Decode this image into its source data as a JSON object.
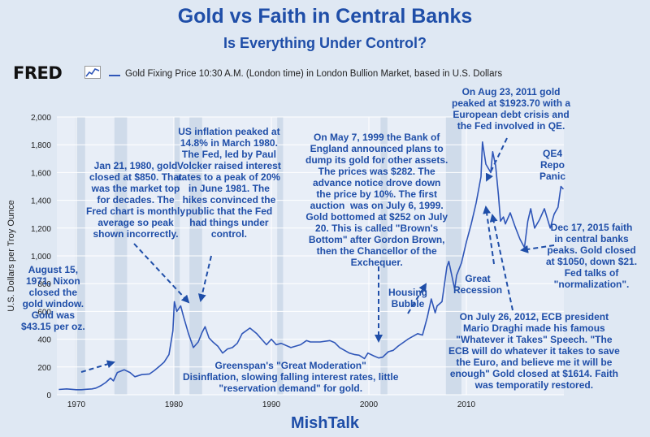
{
  "title": "Gold vs Faith in Central Banks",
  "subtitle": "Is Everything Under Control?",
  "brand": "FRED",
  "legend_label": "Gold Fixing Price 10:30 A.M. (London time) in London Bullion Market, based in U.S. Dollars",
  "footer": "MishTalk",
  "colors": {
    "line": "#2f56b8",
    "text": "#1f4ea8",
    "recession": "#cfdbea",
    "plot_bg": "#e8eef7"
  },
  "annotations": [
    {
      "id": "a1971",
      "text": "August 15,\n1971, Nixon\nclosed the\ngold window.\nGold was\n$43.15 per oz."
    },
    {
      "id": "a1980",
      "text": "Jan 21, 1980, gold\nclosed at $850. That\nwas the market top\nfor decades. The\nFred chart is monthly\naverage so peak\nshown incorrectly."
    },
    {
      "id": "a1981",
      "text": "US inflation peaked at\n14.8% in March 1980.\nThe Fed, led by Paul\nVolcker raised interest\nrates to a peak of 20%\nin June 1981. The\nhikes convinced the\npublic that the Fed\nhad things under\ncontrol."
    },
    {
      "id": "a1999",
      "text": "On May 7, 1999 the Bank of\nEngland announced plans to\ndump its gold for other assets.\nThe prices was $282. The\nadvance notice drove down\nthe price by 10%. The first\nauction  was on July 6, 1999.\nGold bottomed at $252 on July\n20. This is called \"Brown's\nBottom\" after Gordon Brown,\nthen the Chancellor of the\nExchequer."
    },
    {
      "id": "a2011",
      "text": "On Aug 23, 2011 gold\npeaked at $1923.70 with a\nEuropean debt crisis and\nthe Fed involved in QE."
    },
    {
      "id": "aqe4",
      "text": "QE4\nRepo\nPanic"
    },
    {
      "id": "a2015",
      "text": "Dec 17, 2015 faith\nin central banks\npeaks. Gold closed\nat $1050, down $21.\nFed talks of\n\"normalization\"."
    },
    {
      "id": "ahousing",
      "text": "Housing\nBubble"
    },
    {
      "id": "arecession",
      "text": "Great\nRecession"
    },
    {
      "id": "a2012",
      "text": "On July 26, 2012, ECB president\nMario Draghi made his famous\n\"Whatever it Takes\" Speech. \"The\nECB will do whatever it takes to save\nthe Euro, and believe me it will be\nenough\" Gold closed at $1614. Faith\nwas temporatily restored."
    },
    {
      "id": "agreenspan",
      "text": "Greenspan's \"Great Moderation\"\nDisinflation, slowing falling interest rates, little\n\"reservation demand\" for gold."
    }
  ],
  "chart_data": {
    "type": "line",
    "ylabel": "U.S. Dollars per Troy Ounce",
    "xlim": [
      1968,
      2020
    ],
    "ylim": [
      0,
      2000
    ],
    "x_ticks": [
      1970,
      1980,
      1990,
      2000,
      2010
    ],
    "y_ticks": [
      0,
      200,
      400,
      600,
      800,
      1000,
      1200,
      1400,
      1600,
      1800,
      2000
    ],
    "y_tick_labels": [
      "0",
      "200",
      "400",
      "600",
      "800",
      "1,000",
      "1,200",
      "1,400",
      "1,600",
      "1,800",
      "2,000"
    ],
    "grid": true,
    "recessions": [
      [
        1969.9,
        1970.9
      ],
      [
        1973.9,
        1975.2
      ],
      [
        1980.0,
        1980.6
      ],
      [
        1981.6,
        1982.9
      ],
      [
        1990.6,
        1991.2
      ],
      [
        2001.2,
        2001.9
      ],
      [
        2007.9,
        2009.5
      ]
    ],
    "series": [
      {
        "x": [
          1968.2,
          1969.0,
          1970.0,
          1970.5,
          1971.0,
          1971.6,
          1972.0,
          1972.5,
          1973.0,
          1973.5,
          1973.8,
          1974.2,
          1974.9,
          1975.5,
          1976.0,
          1976.7,
          1977.5,
          1978.0,
          1978.6,
          1979.0,
          1979.5,
          1979.9,
          1980.05,
          1980.3,
          1980.7,
          1981.0,
          1981.5,
          1982.0,
          1982.5,
          1982.9,
          1983.2,
          1983.6,
          1984.0,
          1984.5,
          1985.0,
          1985.5,
          1986.0,
          1986.5,
          1987.0,
          1987.8,
          1988.5,
          1989.0,
          1989.5,
          1990.0,
          1990.5,
          1991.0,
          1992.0,
          1993.0,
          1993.6,
          1994.0,
          1995.0,
          1996.0,
          1996.5,
          1997.0,
          1997.5,
          1998.0,
          1998.5,
          1999.0,
          1999.55,
          1999.9,
          2000.5,
          2001.0,
          2001.4,
          2002.0,
          2002.5,
          2003.0,
          2004.0,
          2005.0,
          2005.5,
          2006.0,
          2006.4,
          2006.8,
          2007.0,
          2007.5,
          2008.0,
          2008.2,
          2008.8,
          2009.0,
          2009.5,
          2010.0,
          2010.5,
          2011.0,
          2011.5,
          2011.65,
          2012.0,
          2012.5,
          2012.7,
          2013.0,
          2013.3,
          2013.5,
          2013.8,
          2014.0,
          2014.5,
          2015.0,
          2015.5,
          2015.96,
          2016.3,
          2016.6,
          2017.0,
          2017.5,
          2018.0,
          2018.6,
          2019.0,
          2019.4,
          2019.7,
          2019.95
        ],
        "values": [
          38,
          42,
          36,
          36,
          39,
          42,
          48,
          65,
          88,
          120,
          100,
          160,
          180,
          160,
          130,
          145,
          150,
          175,
          210,
          235,
          290,
          460,
          670,
          600,
          640,
          560,
          440,
          340,
          380,
          450,
          490,
          410,
          380,
          350,
          300,
          330,
          340,
          370,
          440,
          480,
          440,
          400,
          360,
          400,
          360,
          370,
          340,
          360,
          390,
          380,
          380,
          390,
          375,
          340,
          320,
          300,
          290,
          285,
          260,
          300,
          280,
          265,
          270,
          310,
          320,
          350,
          400,
          440,
          430,
          560,
          690,
          590,
          640,
          670,
          920,
          960,
          760,
          860,
          950,
          1100,
          1230,
          1380,
          1570,
          1820,
          1660,
          1600,
          1750,
          1650,
          1430,
          1250,
          1280,
          1230,
          1310,
          1210,
          1120,
          1060,
          1250,
          1340,
          1200,
          1260,
          1340,
          1200,
          1300,
          1350,
          1500,
          1480
        ]
      }
    ]
  }
}
